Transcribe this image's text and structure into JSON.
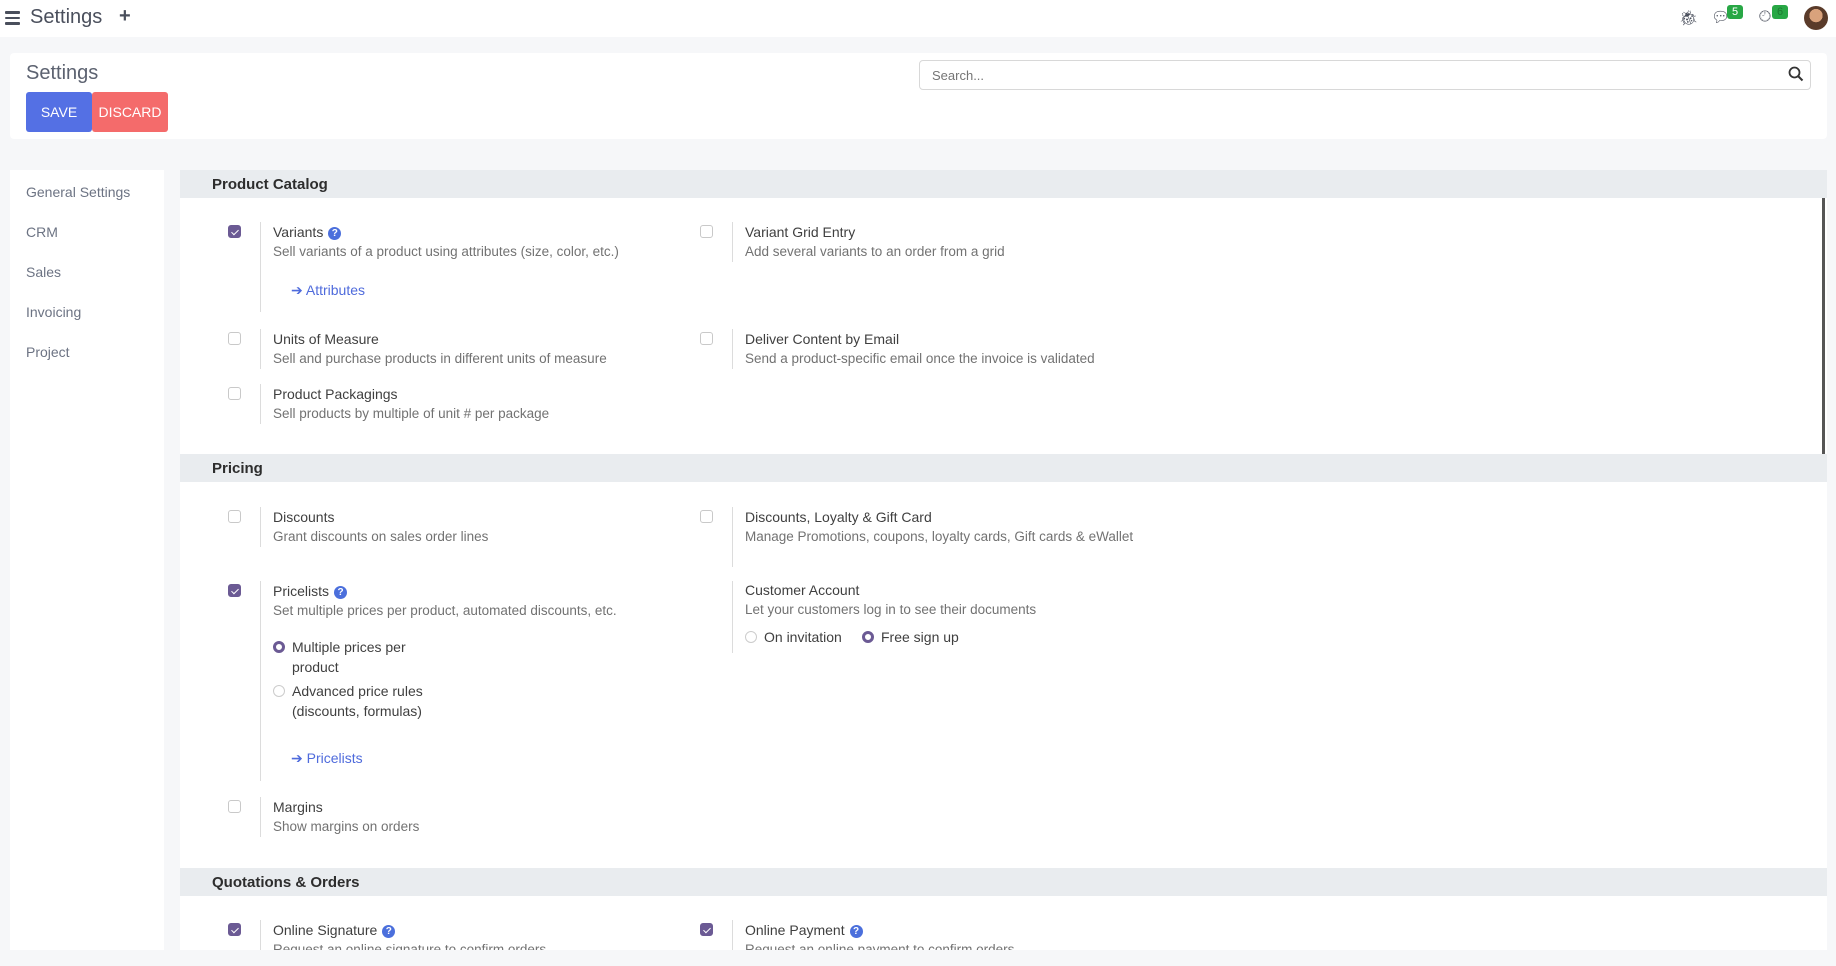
{
  "topbar": {
    "title": "Settings",
    "messages_count": "5",
    "activities_count": "6"
  },
  "header": {
    "title": "Settings",
    "save_label": "SAVE",
    "discard_label": "DISCARD",
    "search_placeholder": "Search..."
  },
  "sidebar": {
    "items": [
      {
        "label": "General Settings"
      },
      {
        "label": "CRM"
      },
      {
        "label": "Sales"
      },
      {
        "label": "Invoicing"
      },
      {
        "label": "Project"
      }
    ]
  },
  "sections": {
    "catalog": {
      "title": "Product Catalog",
      "variants": {
        "label": "Variants",
        "desc": "Sell variants of a product using attributes (size, color, etc.)",
        "checked": true,
        "link": "Attributes"
      },
      "grid": {
        "label": "Variant Grid Entry",
        "desc": "Add several variants to an order from a grid",
        "checked": false
      },
      "uom": {
        "label": "Units of Measure",
        "desc": "Sell and purchase products in different units of measure",
        "checked": false
      },
      "deliver": {
        "label": "Deliver Content by Email",
        "desc": "Send a product-specific email once the invoice is validated",
        "checked": false
      },
      "packagings": {
        "label": "Product Packagings",
        "desc": "Sell products by multiple of unit # per package",
        "checked": false
      }
    },
    "pricing": {
      "title": "Pricing",
      "discounts": {
        "label": "Discounts",
        "desc": "Grant discounts on sales order lines",
        "checked": false
      },
      "loyalty": {
        "label": "Discounts, Loyalty & Gift Card",
        "desc": "Manage Promotions, coupons, loyalty cards, Gift cards & eWallet",
        "checked": false
      },
      "pricelists": {
        "label": "Pricelists",
        "desc": "Set multiple prices per product, automated discounts, etc.",
        "checked": true,
        "option1": "Multiple prices per product",
        "option2": "Advanced price rules (discounts, formulas)",
        "selected": "Multiple prices per product",
        "link": "Pricelists"
      },
      "customer": {
        "label": "Customer Account",
        "desc": "Let your customers log in to see their documents",
        "option1": "On invitation",
        "option2": "Free sign up",
        "selected": "Free sign up"
      },
      "margins": {
        "label": "Margins",
        "desc": "Show margins on orders",
        "checked": false
      }
    },
    "quotations": {
      "title": "Quotations & Orders",
      "signature": {
        "label": "Online Signature",
        "desc": "Request an online signature to confirm orders",
        "checked": true
      },
      "payment": {
        "label": "Online Payment",
        "desc": "Request an online payment to confirm orders",
        "checked": true
      }
    }
  },
  "colors": {
    "primary": "#5470e4",
    "danger": "#f46b6b",
    "checkbox": "#6b5a94",
    "badge": "#28a745"
  }
}
